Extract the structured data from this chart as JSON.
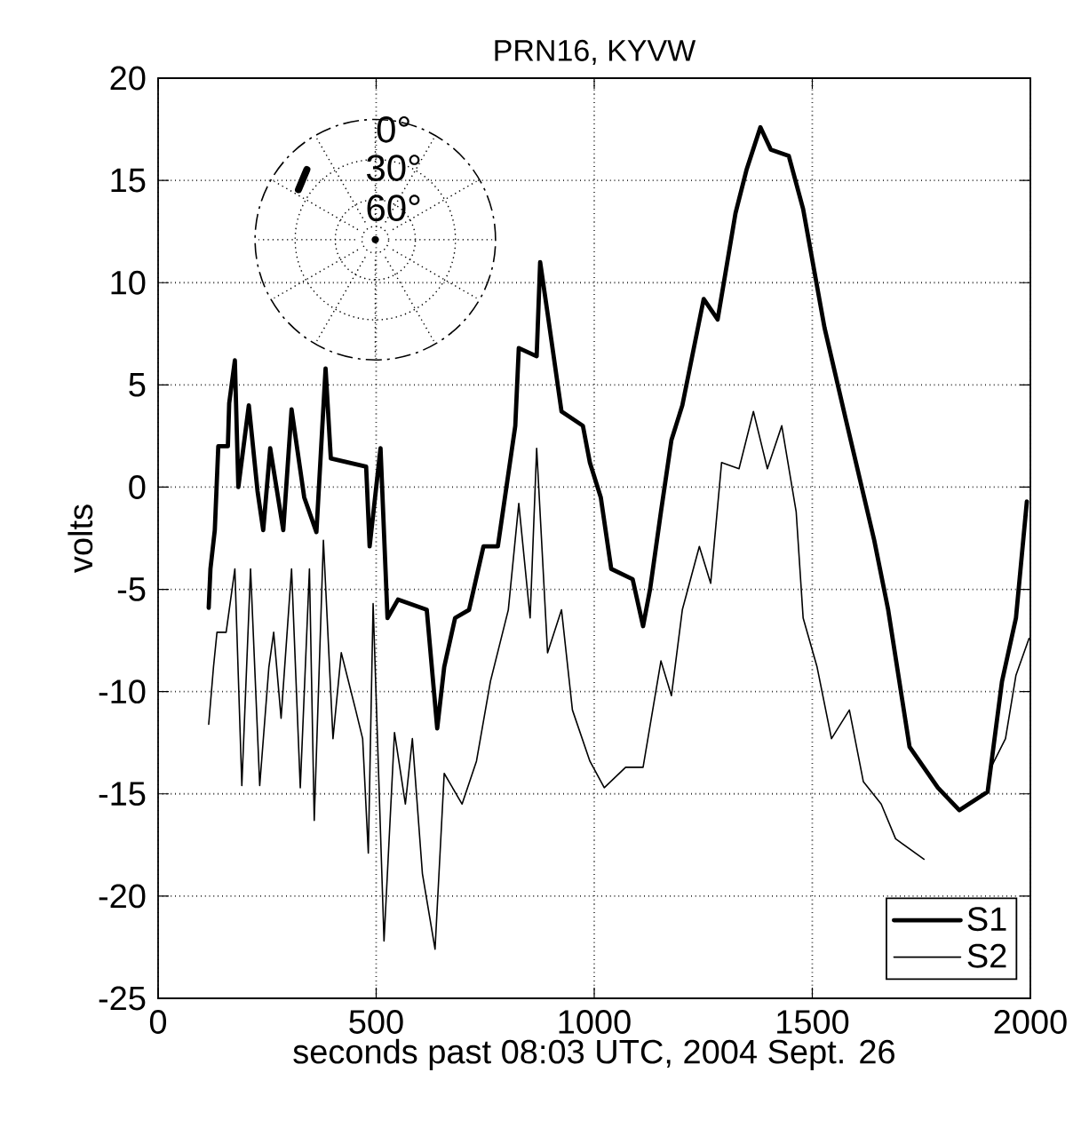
{
  "chart_data": {
    "type": "line",
    "title": "PRN16, KYVW",
    "xlabel": "seconds past 08:03 UTC, 2004 Sept. 26",
    "ylabel": "volts",
    "xlim": [
      0,
      2000
    ],
    "ylim": [
      -25,
      20
    ],
    "xticks": [
      0,
      500,
      1000,
      1500,
      2000
    ],
    "yticks": [
      -25,
      -20,
      -15,
      -10,
      -5,
      0,
      5,
      10,
      15,
      20
    ],
    "grid": true,
    "legend": "bottom right",
    "marker": "none",
    "line_style": "solid",
    "annotations": [
      "0°",
      "30°",
      "60°"
    ],
    "series": [
      {
        "name": "S1",
        "color": "#000000",
        "x": [
          116,
          120,
          130,
          138,
          160,
          163,
          176,
          184,
          208,
          228,
          241,
          257,
          287,
          306,
          335,
          363,
          384,
          396,
          477,
          485,
          510,
          526,
          550,
          616,
          640,
          656,
          681,
          713,
          746,
          779,
          819,
          827,
          868,
          876,
          893,
          925,
          974,
          990,
          1015,
          1039,
          1088,
          1112,
          1128,
          1153,
          1177,
          1202,
          1251,
          1283,
          1324,
          1349,
          1381,
          1405,
          1446,
          1479,
          1528,
          1577,
          1642,
          1674,
          1723,
          1788,
          1837,
          1902,
          1935,
          1967,
          1992
        ],
        "values": [
          -5.9,
          -4,
          -2.1,
          2,
          2,
          4.1,
          6.2,
          0,
          4,
          -0.2,
          -2.1,
          1.9,
          -2.1,
          3.8,
          -0.5,
          -2.2,
          5.8,
          1.4,
          1,
          -2.9,
          1.9,
          -6.4,
          -5.5,
          -6,
          -11.8,
          -8.8,
          -6.4,
          -6,
          -2.9,
          -2.9,
          3,
          6.8,
          6.4,
          11,
          8.5,
          3.7,
          3,
          1.2,
          -0.5,
          -4,
          -4.5,
          -6.8,
          -5,
          -1.2,
          2.3,
          4,
          9.2,
          8.2,
          13.4,
          15.5,
          17.6,
          16.5,
          16.2,
          13.6,
          7.8,
          3.3,
          -2.6,
          -6,
          -12.7,
          -14.7,
          -15.8,
          -14.9,
          -9.5,
          -6.4,
          -0.7
        ]
      },
      {
        "name": "S2",
        "color": "#000000",
        "x": [
          116,
          127,
          135,
          156,
          176,
          192,
          212,
          233,
          254,
          265,
          282,
          306,
          326,
          347,
          358,
          379,
          401,
          420,
          453,
          469,
          482,
          493,
          518,
          542,
          567,
          583,
          606,
          635,
          656,
          697,
          730,
          762,
          803,
          827,
          853,
          868,
          893,
          925,
          950,
          990,
          1023,
          1072,
          1112,
          1153,
          1177,
          1202,
          1241,
          1267,
          1292,
          1332,
          1365,
          1397,
          1430,
          1463,
          1479,
          1511,
          1544,
          1585,
          1617,
          1658,
          1691,
          1756,
          1894,
          1910,
          1943,
          1967,
          1997
        ],
        "values": [
          -11.6,
          -8.8,
          -7.1,
          -7.1,
          -4,
          -14.6,
          -4,
          -14.6,
          -8.8,
          -7.1,
          -11.3,
          -4,
          -14.7,
          -4,
          -16.3,
          -2.6,
          -12.3,
          -8.1,
          -10.9,
          -12.3,
          -17.9,
          -5.7,
          -22.2,
          -12,
          -15.5,
          -12.3,
          -18.9,
          -22.6,
          -14,
          -15.5,
          -13.4,
          -9.5,
          -6,
          -0.8,
          -6.4,
          1.9,
          -8.1,
          -6,
          -10.9,
          -13.4,
          -14.7,
          -13.7,
          -13.7,
          -8.5,
          -10.2,
          -6,
          -2.9,
          -4.7,
          1.2,
          0.9,
          3.7,
          0.9,
          3,
          -1.2,
          -6.4,
          -8.8,
          -12.3,
          -10.9,
          -14.4,
          -15.5,
          -17.2,
          -18.2,
          null,
          -13.7,
          -12.3,
          -9.2,
          -7.4
        ]
      }
    ]
  }
}
